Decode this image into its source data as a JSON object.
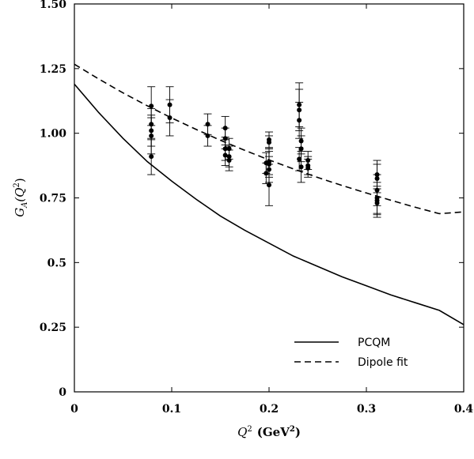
{
  "chart_data": {
    "type": "scatter",
    "title": "",
    "xlabel_main": "Q",
    "xlabel_sup": "2",
    "xlabel_unit": "(GeV",
    "xlabel_unit_sup": "2",
    "xlabel_close": ")",
    "ylabel_main": "G",
    "ylabel_sub": "A",
    "ylabel_open": "(Q",
    "ylabel_sup": "2",
    "ylabel_close": ")",
    "xlim": [
      0,
      0.4
    ],
    "ylim": [
      0,
      1.5
    ],
    "x_ticks": [
      0,
      0.1,
      0.2,
      0.3,
      0.4
    ],
    "x_tick_labels": [
      "0",
      "0.1",
      "0.2",
      "0.3",
      "0.4"
    ],
    "y_ticks": [
      0,
      0.25,
      0.5,
      0.75,
      1.0,
      1.25,
      1.5
    ],
    "y_tick_labels": [
      "0",
      "0.25",
      "0.5",
      "0.75",
      "1.00",
      "1.25",
      "1.50"
    ],
    "grid": false,
    "legend_position": "bottom-right",
    "series": [
      {
        "name": "PCQM",
        "kind": "line",
        "style": "solid",
        "x": [
          0,
          0.025,
          0.05,
          0.075,
          0.1,
          0.125,
          0.15,
          0.175,
          0.2,
          0.225,
          0.25,
          0.275,
          0.3,
          0.325,
          0.35,
          0.375,
          0.4
        ],
        "y": [
          1.19,
          1.08,
          0.98,
          0.89,
          0.815,
          0.745,
          0.68,
          0.625,
          0.575,
          0.525,
          0.485,
          0.445,
          0.41,
          0.375,
          0.345,
          0.315,
          0.26
        ]
      },
      {
        "name": "Dipole fit",
        "kind": "line",
        "style": "dashed",
        "x": [
          0,
          0.025,
          0.05,
          0.075,
          0.1,
          0.125,
          0.15,
          0.175,
          0.2,
          0.225,
          0.25,
          0.275,
          0.3,
          0.325,
          0.35,
          0.375,
          0.4
        ],
        "y": [
          1.267,
          1.21,
          1.156,
          1.106,
          1.059,
          1.015,
          0.973,
          0.934,
          0.897,
          0.862,
          0.829,
          0.798,
          0.769,
          0.741,
          0.714,
          0.689,
          0.696
        ]
      },
      {
        "name": "",
        "kind": "points",
        "x": [
          0.079,
          0.079,
          0.079,
          0.079,
          0.079,
          0.098,
          0.098,
          0.137,
          0.137,
          0.155,
          0.155,
          0.155,
          0.155,
          0.159,
          0.159,
          0.159,
          0.197,
          0.197,
          0.2,
          0.2,
          0.2,
          0.2,
          0.2,
          0.2,
          0.231,
          0.231,
          0.231,
          0.231,
          0.233,
          0.233,
          0.233,
          0.24,
          0.24,
          0.24,
          0.311,
          0.311,
          0.311,
          0.311,
          0.311,
          0.311
        ],
        "y": [
          1.105,
          1.035,
          1.01,
          0.99,
          0.91,
          1.11,
          1.06,
          1.035,
          0.99,
          1.02,
          0.98,
          0.94,
          0.915,
          0.94,
          0.91,
          0.895,
          0.885,
          0.845,
          0.975,
          0.965,
          0.89,
          0.88,
          0.86,
          0.8,
          1.11,
          1.09,
          1.05,
          0.9,
          0.97,
          0.94,
          0.87,
          0.895,
          0.875,
          0.865,
          0.84,
          0.825,
          0.78,
          0.75,
          0.74,
          0.73
        ],
        "err": [
          0.075,
          0.06,
          0.06,
          0.07,
          0.07,
          0.07,
          0.07,
          0.04,
          0.04,
          0.045,
          0.04,
          0.045,
          0.04,
          0.04,
          0.04,
          0.04,
          0.04,
          0.04,
          0.03,
          0.025,
          0.05,
          0.05,
          0.05,
          0.08,
          0.085,
          0.08,
          0.07,
          0.045,
          0.05,
          0.05,
          0.06,
          0.035,
          0.035,
          0.035,
          0.055,
          0.055,
          0.06,
          0.06,
          0.055,
          0.055
        ]
      }
    ]
  }
}
